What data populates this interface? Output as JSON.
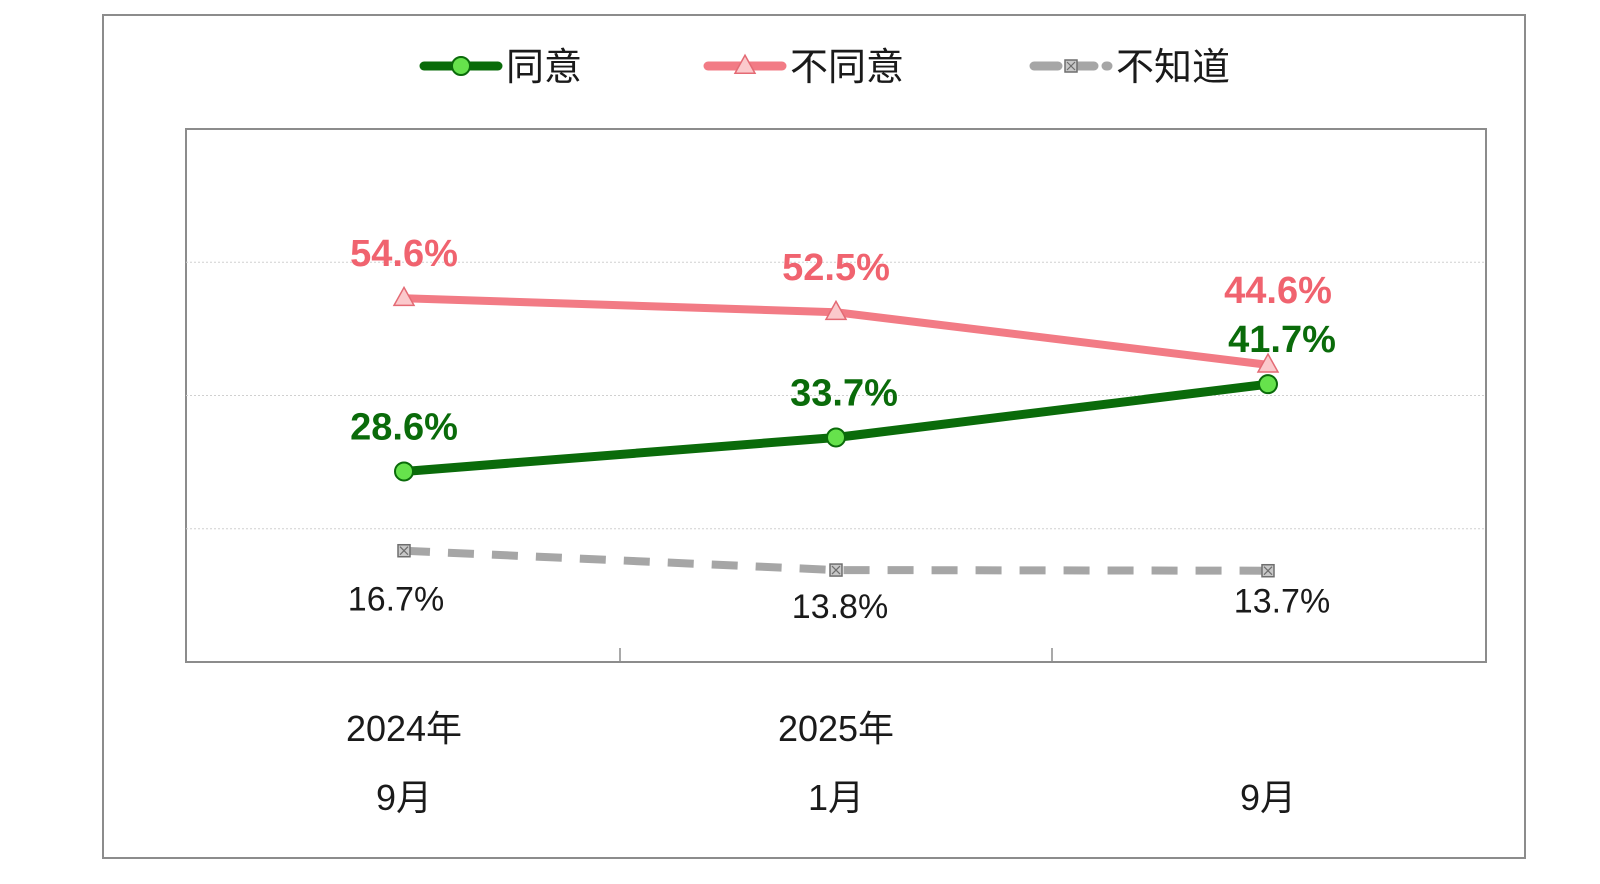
{
  "chart_data": {
    "type": "line",
    "title": "",
    "xlabel": "",
    "ylabel": "",
    "ylim": [
      0,
      80
    ],
    "grid": true,
    "legend_position": "top",
    "categories": [
      {
        "line1": "2024年",
        "line2": "9月"
      },
      {
        "line1": "2025年",
        "line2": "1月"
      },
      {
        "line1": "",
        "line2": "9月"
      }
    ],
    "series": [
      {
        "name": "同意",
        "values": [
          28.6,
          33.7,
          41.7
        ],
        "labels": [
          "28.6%",
          "33.7%",
          "41.7%"
        ],
        "color": "#0a6b0a",
        "marker": "circle",
        "dash": "solid"
      },
      {
        "name": "不同意",
        "values": [
          54.6,
          52.5,
          44.6
        ],
        "labels": [
          "54.6%",
          "52.5%",
          "44.6%"
        ],
        "color": "#f27b85",
        "marker": "triangle",
        "dash": "solid"
      },
      {
        "name": "不知道",
        "values": [
          16.7,
          13.8,
          13.7
        ],
        "labels": [
          "16.7%",
          "13.8%",
          "13.7%"
        ],
        "color": "#a6a6a6",
        "marker": "square-x",
        "dash": "dashed"
      }
    ]
  }
}
